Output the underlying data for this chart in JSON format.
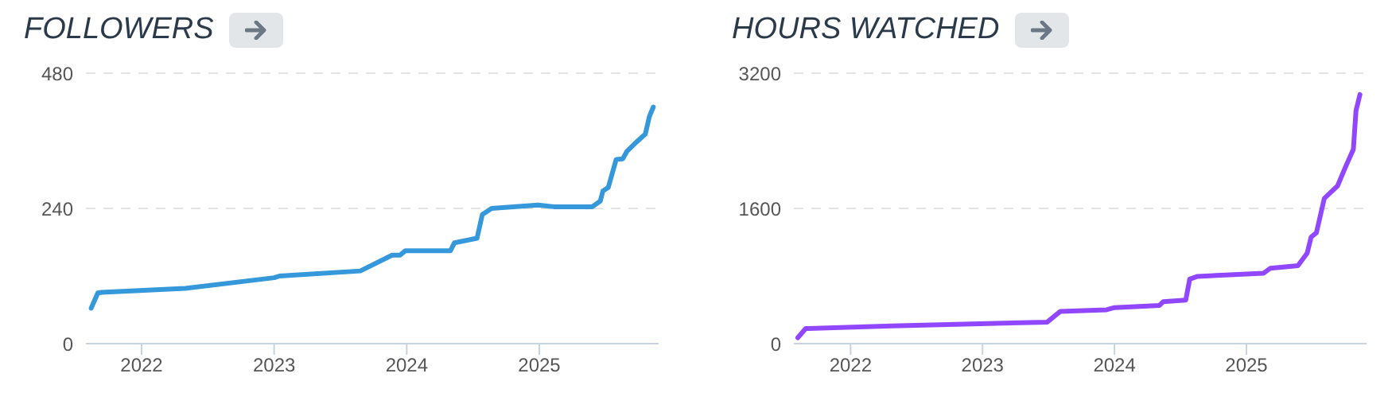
{
  "chart_data": [
    {
      "type": "line",
      "title": "FOLLOWERS",
      "x": [
        2021.62,
        2021.67,
        2021.7,
        2022.33,
        2023.0,
        2023.04,
        2023.65,
        2023.89,
        2023.95,
        2023.99,
        2024.33,
        2024.36,
        2024.53,
        2024.57,
        2024.64,
        2024.99,
        2025.11,
        2025.4,
        2025.46,
        2025.48,
        2025.52,
        2025.58,
        2025.63,
        2025.66,
        2025.72,
        2025.8,
        2025.83,
        2025.86
      ],
      "series": [
        {
          "color": "#3498db",
          "values": [
            63,
            90,
            91,
            98,
            117,
            120,
            129,
            157,
            157,
            165,
            165,
            179,
            187,
            229,
            240,
            246,
            243,
            243,
            253,
            271,
            277,
            327,
            328,
            341,
            355,
            372,
            403,
            420
          ]
        }
      ],
      "xlim": [
        2021.58,
        2025.9
      ],
      "xticks": [
        2022,
        2023,
        2024,
        2025
      ],
      "ylim": [
        0,
        480
      ],
      "yticks": [
        0,
        240,
        480
      ],
      "grid": "y"
    },
    {
      "type": "line",
      "title": "HOURS WATCHED",
      "x": [
        2021.6,
        2021.66,
        2022.31,
        2023.49,
        2023.59,
        2023.94,
        2024.0,
        2024.34,
        2024.37,
        2024.54,
        2024.57,
        2024.63,
        2025.13,
        2025.18,
        2025.39,
        2025.46,
        2025.49,
        2025.53,
        2025.59,
        2025.69,
        2025.75,
        2025.81,
        2025.83,
        2025.86
      ],
      "series": [
        {
          "color": "#9147ff",
          "values": [
            70,
            178,
            210,
            255,
            382,
            401,
            427,
            452,
            497,
            516,
            764,
            796,
            834,
            891,
            923,
            1070,
            1261,
            1312,
            1719,
            1866,
            2088,
            2298,
            2756,
            2947
          ]
        }
      ],
      "xlim": [
        2021.57,
        2025.91
      ],
      "xticks": [
        2022,
        2023,
        2024,
        2025
      ],
      "ylim": [
        0,
        3200
      ],
      "yticks": [
        0,
        1600,
        3200
      ],
      "grid": "y"
    }
  ]
}
